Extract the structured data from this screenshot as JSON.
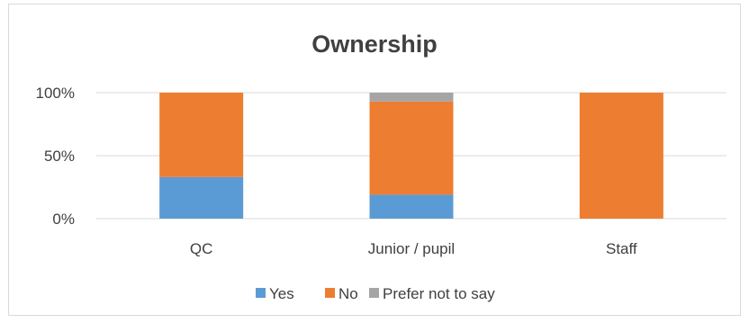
{
  "chart_data": {
    "type": "bar",
    "stacked": true,
    "title": "Ownership",
    "xlabel": "",
    "ylabel": "",
    "categories": [
      "QC",
      "Junior / pupil",
      "Staff"
    ],
    "series": [
      {
        "name": "Yes",
        "color": "#5B9BD5",
        "values": [
          33,
          19,
          0
        ]
      },
      {
        "name": "No",
        "color": "#ED7D31",
        "values": [
          67,
          74,
          100
        ]
      },
      {
        "name": "Prefer not to say",
        "color": "#A5A5A5",
        "values": [
          0,
          7,
          0
        ]
      }
    ],
    "ylim": [
      0,
      100
    ],
    "yticks": [
      "0%",
      "50%",
      "100%"
    ],
    "grid": true,
    "legend_position": "bottom"
  }
}
